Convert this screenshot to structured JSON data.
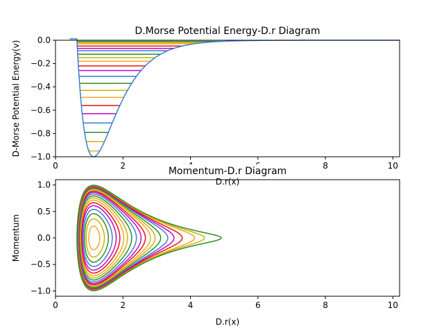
{
  "chart_data": [
    {
      "type": "line",
      "title": "D.Morse Potential Energy-D.r Diagram",
      "xlabel": "D.r(x)",
      "ylabel": "D-Morse Potential Energy(v)",
      "xlim": [
        0,
        10.2
      ],
      "ylim": [
        -1.0,
        0.0
      ],
      "xticks": [
        "0",
        "2",
        "4",
        "6",
        "8",
        "10"
      ],
      "yticks": [
        "−1.0",
        "−0.8",
        "−0.6",
        "−0.4",
        "−0.2",
        "0.0"
      ],
      "grid": false,
      "curve": {
        "function": "morse",
        "D": 1,
        "a": 1.4,
        "r0": 1.13,
        "color": "#3a7bd5",
        "x_range": [
          0.42,
          10.2
        ]
      },
      "energy_levels": {
        "values": [
          -0.95,
          -0.87,
          -0.79,
          -0.71,
          -0.63,
          -0.56,
          -0.49,
          -0.43,
          -0.37,
          -0.31,
          -0.26,
          -0.22,
          -0.18,
          -0.15,
          -0.12,
          -0.09,
          -0.07,
          -0.05,
          -0.03,
          -0.02,
          -0.01
        ],
        "colors": [
          "#f5a623",
          "#c8b400",
          "#2e8b22",
          "#3a7bd5",
          "#c800c8",
          "#e81010",
          "#f5a623",
          "#c8b400",
          "#2e8b22",
          "#3a7bd5",
          "#c800c8",
          "#e81010",
          "#f5a623",
          "#c8b400",
          "#2e8b22",
          "#3a7bd5",
          "#c800c8",
          "#e81010",
          "#f5a623",
          "#c8b400",
          "#2e8b22"
        ]
      }
    },
    {
      "type": "line",
      "title": "Momentum-D.r Diagram",
      "xlabel": "D.r(x)",
      "ylabel": "Momentum",
      "xlim": [
        0,
        10.2
      ],
      "ylim": [
        -1.1,
        1.1
      ],
      "xticks": [
        "0",
        "2",
        "4",
        "6",
        "8",
        "10"
      ],
      "yticks": [
        "−1.0",
        "−0.5",
        "0.0",
        "0.5",
        "1.0"
      ],
      "grid": false,
      "orbits": {
        "energies": [
          -0.95,
          -0.87,
          -0.79,
          -0.71,
          -0.63,
          -0.56,
          -0.49,
          -0.43,
          -0.37,
          -0.31,
          -0.26,
          -0.22,
          -0.18,
          -0.15,
          -0.12,
          -0.09,
          -0.07,
          -0.05,
          -0.03,
          -0.02,
          -0.01
        ],
        "colors": [
          "#f5a623",
          "#c8b400",
          "#2e8b22",
          "#3a7bd5",
          "#c800c8",
          "#e81010",
          "#f5a623",
          "#c8b400",
          "#2e8b22",
          "#3a7bd5",
          "#c800c8",
          "#e81010",
          "#f5a623",
          "#c8b400",
          "#2e8b22",
          "#3a7bd5",
          "#c800c8",
          "#e81010",
          "#f5a623",
          "#c8b400",
          "#2e8b22"
        ]
      }
    }
  ]
}
